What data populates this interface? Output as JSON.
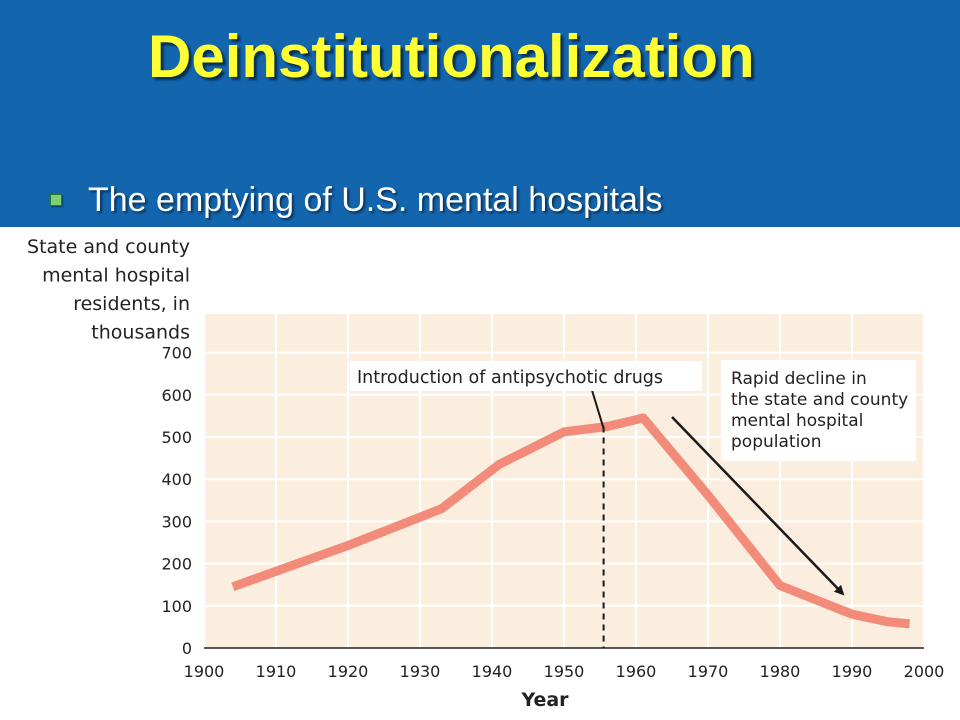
{
  "slide": {
    "title": "Deinstitutionalization",
    "bullet": "The emptying of U.S. mental hospitals",
    "colors": {
      "header_bg": "#1365ae",
      "title": "#ffff33",
      "bullet_marker": "#7bd36d",
      "plot_bg": "#fbeede",
      "line": "#f28b7a"
    }
  },
  "chart_data": {
    "type": "line",
    "ylabel": [
      "State and county",
      "mental hospital",
      "residents, in",
      "thousands"
    ],
    "xlabel": "Year",
    "xlim": [
      1900,
      2000
    ],
    "ylim": [
      0,
      750
    ],
    "x_ticks": [
      1900,
      1910,
      1920,
      1930,
      1940,
      1950,
      1960,
      1970,
      1980,
      1990,
      2000
    ],
    "y_ticks": [
      0,
      100,
      200,
      300,
      400,
      500,
      600,
      700
    ],
    "grid": true,
    "series": [
      {
        "x": [
          1904,
          1920,
          1933,
          1941,
          1950,
          1956,
          1961,
          1970,
          1980,
          1990,
          1995,
          1998
        ],
        "y": [
          145,
          243,
          330,
          435,
          512,
          525,
          545,
          362,
          148,
          80,
          62,
          57
        ]
      }
    ],
    "annotations": [
      {
        "text": "Introduction of antipsychotic drugs",
        "x": 1955.5
      },
      {
        "text": [
          "Rapid decline in",
          "the state and county",
          "mental hospital",
          "population"
        ]
      }
    ]
  }
}
